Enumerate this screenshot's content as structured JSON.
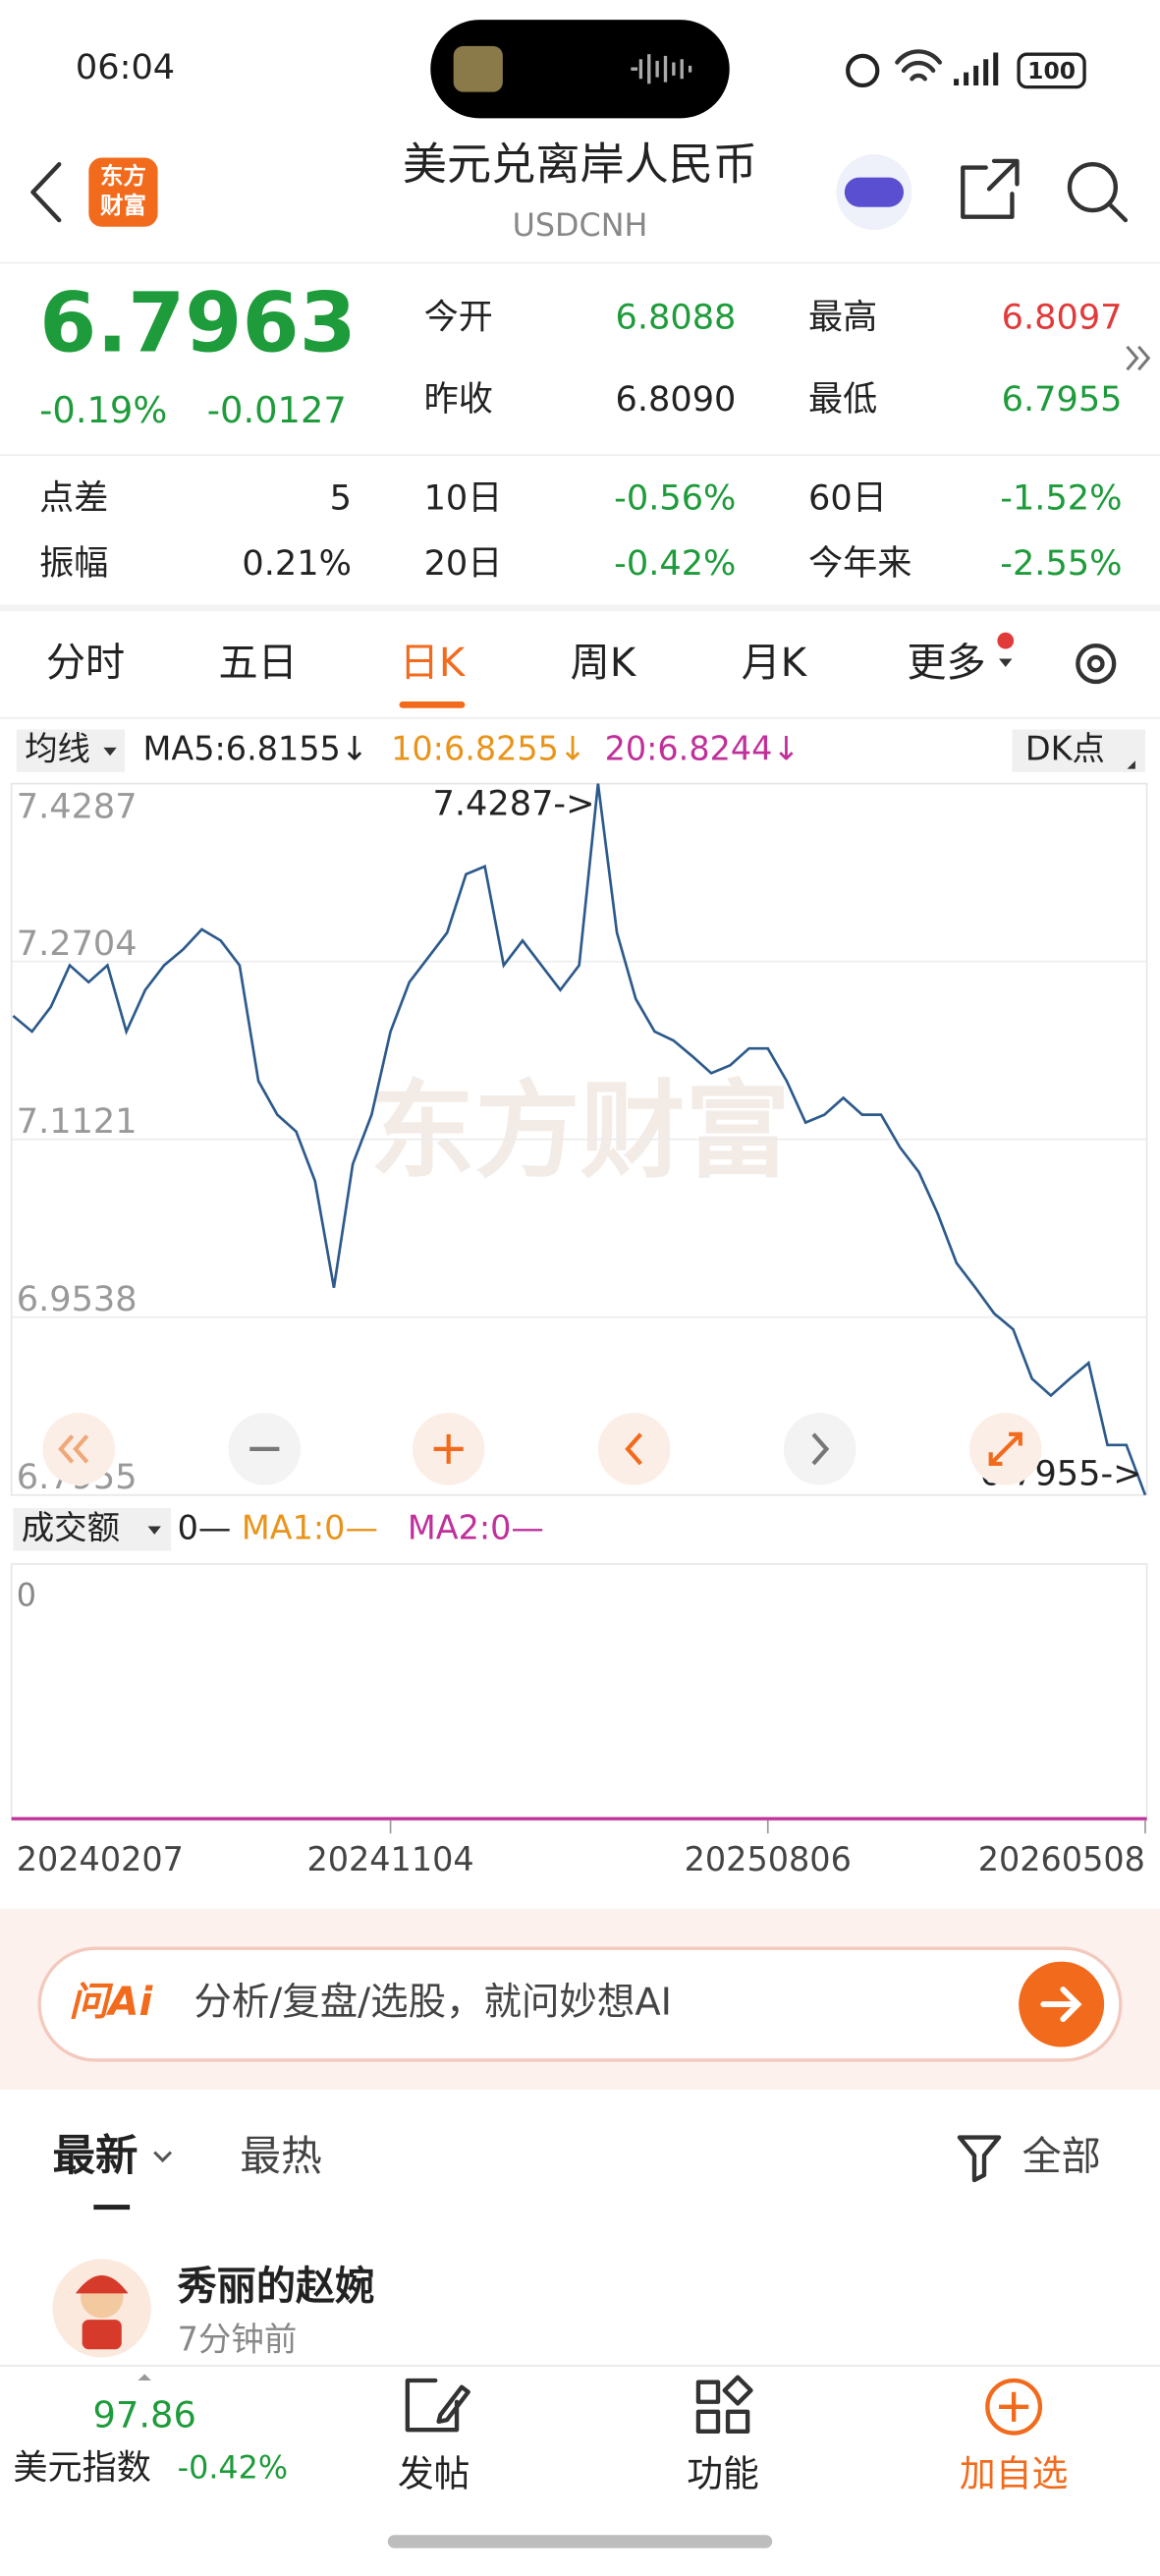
{
  "status_bar": {
    "time": "06:04",
    "battery": "100"
  },
  "header": {
    "logo": [
      "东方",
      "财富"
    ],
    "title": "美元兑离岸人民币",
    "code": "USDCNH"
  },
  "quote": {
    "price": "6.7963",
    "change_pct": "-0.19%",
    "change": "-0.0127",
    "open_label": "今开",
    "open": "6.8088",
    "high_label": "最高",
    "high": "6.8097",
    "prev_close_label": "昨收",
    "prev_close": "6.8090",
    "low_label": "最低",
    "low": "6.7955"
  },
  "stats": [
    [
      {
        "label": "点差",
        "value": "5"
      },
      {
        "label": "10日",
        "value": "-0.56%"
      },
      {
        "label": "60日",
        "value": "-1.52%"
      }
    ],
    [
      {
        "label": "振幅",
        "value": "0.21%"
      },
      {
        "label": "20日",
        "value": "-0.42%"
      },
      {
        "label": "今年来",
        "value": "-2.55%"
      }
    ]
  ],
  "tabs": [
    "分时",
    "五日",
    "日K",
    "周K",
    "月K",
    "更多"
  ],
  "active_tab": 2,
  "ma_bar": {
    "selector": "均线",
    "ma5": "MA5:6.8155↓",
    "ma10": "10:6.8255↓",
    "ma20": "20:6.8244↓",
    "dk": "DK点"
  },
  "chart_data": {
    "type": "line",
    "color": "#2d5a8c",
    "grid": true,
    "watermark": "东方财富",
    "categories": [
      "20240207",
      null,
      null,
      null,
      null,
      null,
      null,
      null,
      null,
      null,
      null,
      null,
      null,
      null,
      null,
      null,
      null,
      null,
      null,
      null,
      "20241104",
      null,
      null,
      null,
      null,
      null,
      null,
      null,
      null,
      null,
      null,
      null,
      null,
      null,
      null,
      null,
      null,
      null,
      null,
      null,
      "20250806",
      null,
      null,
      null,
      null,
      null,
      null,
      null,
      null,
      null,
      null,
      null,
      null,
      null,
      null,
      null,
      null,
      null,
      null,
      null,
      "20260508"
    ],
    "values": [
      7.222,
      7.208,
      7.23,
      7.267,
      7.252,
      7.267,
      7.208,
      7.245,
      7.267,
      7.281,
      7.299,
      7.289,
      7.267,
      7.164,
      7.134,
      7.119,
      7.075,
      6.98,
      7.09,
      7.134,
      7.208,
      7.252,
      7.274,
      7.296,
      7.348,
      7.355,
      7.267,
      7.289,
      7.267,
      7.245,
      7.267,
      7.4287,
      7.296,
      7.237,
      7.208,
      7.2,
      7.186,
      7.171,
      7.178,
      7.193,
      7.193,
      7.164,
      7.127,
      7.134,
      7.149,
      7.134,
      7.134,
      7.105,
      7.083,
      7.046,
      7.002,
      6.98,
      6.957,
      6.943,
      6.899,
      6.884,
      6.899,
      6.913,
      6.84,
      6.84,
      6.7955
    ],
    "ylim": [
      6.7955,
      7.4287
    ],
    "yticks": [
      7.4287,
      7.2704,
      7.1121,
      6.9538,
      6.7955
    ],
    "annotations": [
      "7.4287->",
      "6.7955->"
    ]
  },
  "volume": {
    "selector": "成交额",
    "legend": [
      "0—",
      "MA1:0—",
      "MA2:0—"
    ],
    "ytick": "0"
  },
  "ask_bar": {
    "logo": "问Ai",
    "placeholder": "分析/复盘/选股，就问妙想AI"
  },
  "feed": {
    "tabs": [
      "最新",
      "最热"
    ],
    "filter": "全部",
    "posts": [
      {
        "user": "秀丽的赵婉",
        "time": "7分钟前"
      }
    ]
  },
  "bottom_bar": {
    "index_value": "97.86",
    "index_name": "美元指数",
    "index_change": "-0.42%",
    "items": [
      "发帖",
      "功能",
      "加自选"
    ]
  }
}
